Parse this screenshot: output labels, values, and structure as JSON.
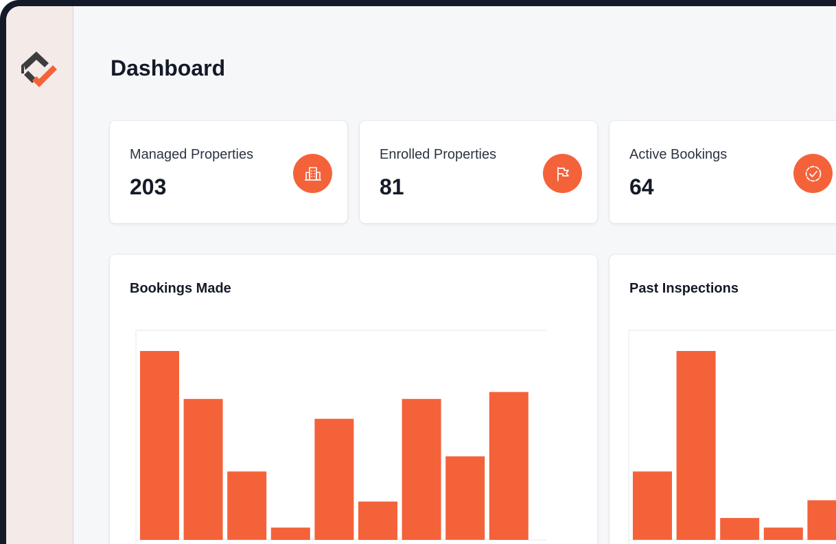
{
  "page": {
    "title": "Dashboard"
  },
  "theme": {
    "accent": "#f4623a",
    "sidebar_bg": "#f4eae8",
    "frame": "#141a27"
  },
  "stats": [
    {
      "label": "Managed Properties",
      "value": "203",
      "icon": "building-icon"
    },
    {
      "label": "Enrolled Properties",
      "value": "81",
      "icon": "flag-icon"
    },
    {
      "label": "Active Bookings",
      "value": "64",
      "icon": "check-circle-icon"
    }
  ],
  "charts": [
    {
      "title": "Bookings Made"
    },
    {
      "title": "Past Inspections"
    }
  ],
  "chart_data": [
    {
      "type": "bar",
      "title": "Bookings Made",
      "values": [
        1.0,
        0.746,
        0.362,
        0.065,
        0.641,
        0.203,
        0.746,
        0.442,
        0.783
      ],
      "ylim": [
        0,
        1
      ],
      "grid": false,
      "color": "#f4623a"
    },
    {
      "type": "bar",
      "title": "Past Inspections",
      "values": [
        0.362,
        1.0,
        0.116,
        0.065,
        0.21
      ],
      "ylim": [
        0,
        1
      ],
      "grid": false,
      "color": "#f4623a"
    }
  ]
}
